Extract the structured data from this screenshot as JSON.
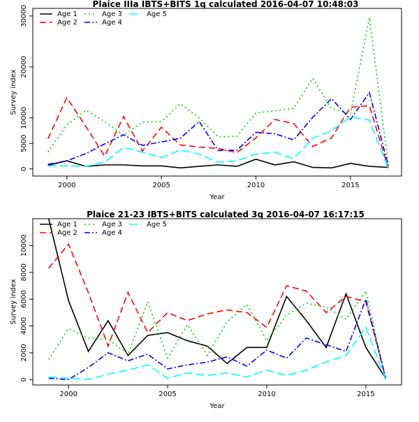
{
  "chart_data": [
    {
      "type": "line",
      "title": "Plaice IIIa IBTS+BITS 1q calculated 2016-04-07 10:48:03",
      "xlabel": "Year",
      "ylabel": "Survey index",
      "xlim": [
        1998.2,
        2017.7
      ],
      "ylim": [
        -1400,
        31500
      ],
      "xticks": [
        2000,
        2005,
        2010,
        2015
      ],
      "yticks": [
        0,
        5000,
        10000,
        20000,
        30000
      ],
      "legend_position": "top-left",
      "x": [
        1999,
        2000,
        2001,
        2002,
        2003,
        2004,
        2005,
        2006,
        2007,
        2008,
        2009,
        2010,
        2011,
        2012,
        2013,
        2014,
        2015,
        2016,
        2017
      ],
      "series": [
        {
          "name": "Age 1",
          "color": "#000000",
          "dash": "",
          "values": [
            700,
            1600,
            500,
            800,
            800,
            600,
            600,
            200,
            500,
            800,
            500,
            1900,
            800,
            1400,
            300,
            200,
            1100,
            500,
            300
          ]
        },
        {
          "name": "Age 2",
          "color": "#ff0000",
          "dash": "9,5",
          "values": [
            5900,
            14000,
            8400,
            2500,
            10300,
            3500,
            8200,
            4700,
            4300,
            4000,
            3200,
            6100,
            9700,
            8900,
            4400,
            6100,
            12100,
            12400,
            200
          ]
        },
        {
          "name": "Age 3",
          "color": "#00cd00",
          "dash": "2,4",
          "values": [
            3300,
            8600,
            11500,
            9300,
            6600,
            9200,
            9300,
            12800,
            10000,
            6300,
            6400,
            11000,
            11400,
            11900,
            17800,
            11800,
            10900,
            29700,
            900
          ]
        },
        {
          "name": "Age 4",
          "color": "#0000ff",
          "dash": "8,3,2,3",
          "values": [
            900,
            1600,
            3000,
            4900,
            6700,
            4600,
            5300,
            6000,
            9300,
            3600,
            3700,
            7200,
            6900,
            5700,
            10100,
            13800,
            9700,
            15000,
            600
          ]
        },
        {
          "name": "Age 5",
          "color": "#00ffff",
          "dash": "12,5",
          "values": [
            600,
            600,
            500,
            1300,
            4200,
            3300,
            2200,
            3700,
            2900,
            1300,
            1600,
            2900,
            3300,
            2000,
            6000,
            7500,
            10200,
            9600,
            100
          ]
        }
      ]
    },
    {
      "type": "line",
      "title": "Plaice 21-23 IBTS+BITS calculated 3q 2016-04-07 16:17:15",
      "xlabel": "Year",
      "ylabel": "Survey index",
      "xlim": [
        1998.2,
        2016.8
      ],
      "ylim": [
        -400,
        12000
      ],
      "xticks": [
        2000,
        2005,
        2010,
        2015
      ],
      "yticks": [
        0,
        2000,
        4000,
        6000,
        8000,
        10000
      ],
      "legend_position": "top-left",
      "x": [
        1999,
        2000,
        2001,
        2002,
        2003,
        2004,
        2005,
        2006,
        2007,
        2008,
        2009,
        2010,
        2011,
        2012,
        2013,
        2014,
        2015,
        2016
      ],
      "series": [
        {
          "name": "Age 1",
          "color": "#000000",
          "dash": "",
          "values": [
            12000,
            5900,
            2100,
            4400,
            1800,
            3300,
            3500,
            2900,
            2500,
            1200,
            2400,
            2400,
            6200,
            4400,
            2400,
            6400,
            2400,
            100
          ]
        },
        {
          "name": "Age 2",
          "color": "#ff0000",
          "dash": "9,5",
          "values": [
            8300,
            10100,
            6500,
            2500,
            6500,
            3500,
            5000,
            4400,
            4900,
            5200,
            5000,
            3900,
            7000,
            6600,
            5000,
            6200,
            5800,
            100
          ]
        },
        {
          "name": "Age 3",
          "color": "#00cd00",
          "dash": "2,4",
          "values": [
            1500,
            3800,
            3100,
            3000,
            1900,
            5800,
            1600,
            4100,
            1800,
            4300,
            5600,
            2900,
            4800,
            5700,
            5400,
            4500,
            6600,
            100
          ]
        },
        {
          "name": "Age 4",
          "color": "#0000ff",
          "dash": "8,3,2,3",
          "values": [
            100,
            0,
            900,
            2000,
            1400,
            1900,
            800,
            1100,
            1300,
            1700,
            1000,
            2200,
            1600,
            3100,
            2600,
            2100,
            6000,
            100
          ]
        },
        {
          "name": "Age 5",
          "color": "#00ffff",
          "dash": "12,5",
          "values": [
            200,
            100,
            0,
            400,
            700,
            1100,
            100,
            500,
            300,
            500,
            200,
            700,
            300,
            700,
            1300,
            1800,
            3900,
            0
          ]
        }
      ]
    }
  ]
}
